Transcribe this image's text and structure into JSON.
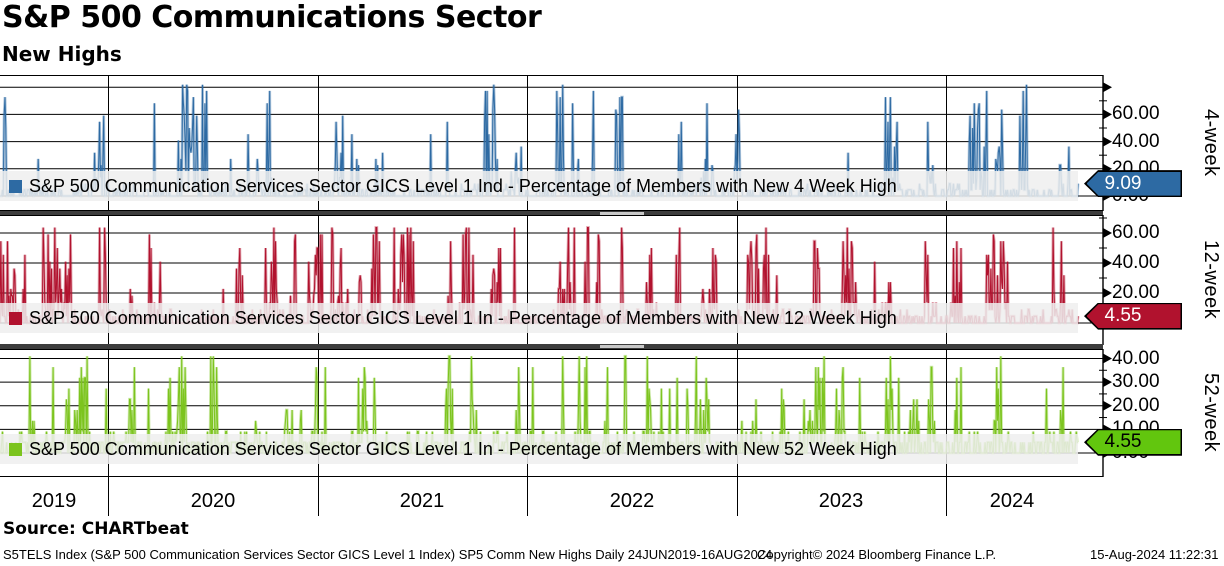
{
  "header": {
    "title": "S&P 500 Communications Sector",
    "subtitle": "New Highs"
  },
  "source_label": "Source: CHARTbeat",
  "footer": {
    "ticker_line": "S5TELS Index (S&P 500 Communication Services Sector GICS Level 1 Index) SP5 Comm New Highs  Daily 24JUN2019-16AUG2024",
    "copyright": "Copyright© 2024 Bloomberg Finance L.P.",
    "timestamp": "15-Aug-2024 11:22:31"
  },
  "xaxis": {
    "years": [
      "2019",
      "2020",
      "2021",
      "2022",
      "2023",
      "2024"
    ]
  },
  "chart_data": {
    "type": "line",
    "title": "S&P 500 Communications Sector - New Highs",
    "frequency": "Daily",
    "x_range": [
      "24JUN2019",
      "16AUG2024"
    ],
    "value_unit": "percent of members",
    "quantum_pct": 4.5455,
    "grid": true,
    "legend_position": "inside-bottom",
    "panels": [
      {
        "id": "4-week",
        "axis_label": "4-week",
        "legend": "S&P 500 Communication Services Sector GICS Level 1 Ind - Percentage of Members with New 4 Week High",
        "last_value": "9.09",
        "last_value_num": 9.09,
        "color": "#2D6AA3",
        "badge_bg": "#2D6AA3",
        "badge_text_color": "#FFFFFF",
        "ylim": [
          0,
          89
        ],
        "gridline_values": [
          0,
          20,
          40,
          60,
          80
        ],
        "minor_ticks": [
          10,
          30,
          50,
          70
        ],
        "yticks": [
          {
            "v": 60,
            "label": "60.00"
          },
          {
            "v": 40,
            "label": "40.00"
          },
          {
            "v": 20,
            "label": "20.00"
          },
          {
            "v": 0,
            "label": "0.00"
          }
        ],
        "gen": {
          "seed": 7391,
          "n": 1300,
          "max_q": 18,
          "p_enter": 0.06,
          "p_exit": 0.14,
          "p_zero_quiet": 0.62,
          "p_zero_active": 0.22,
          "p_big": 0.05
        }
      },
      {
        "id": "12-week",
        "axis_label": "12-week",
        "legend": "S&P 500 Communication Services Sector GICS Level 1 In - Percentage of Members with New 12 Week High",
        "last_value": "4.55",
        "last_value_num": 4.55,
        "color": "#B1122E",
        "badge_bg": "#B1122E",
        "badge_text_color": "#FFFFFF",
        "ylim": [
          0,
          72
        ],
        "gridline_values": [
          0,
          20,
          40,
          60
        ],
        "minor_ticks": [
          10,
          30,
          50,
          70
        ],
        "yticks": [
          {
            "v": 60,
            "label": "60.00"
          },
          {
            "v": 40,
            "label": "40.00"
          },
          {
            "v": 20,
            "label": "20.00"
          },
          {
            "v": 0,
            "label": "0.00"
          }
        ],
        "gen": {
          "seed": 9130,
          "n": 1300,
          "max_q": 14,
          "p_enter": 0.055,
          "p_exit": 0.15,
          "p_zero_quiet": 0.66,
          "p_zero_active": 0.24,
          "p_big": 0.04
        }
      },
      {
        "id": "52-week",
        "axis_label": "52-week",
        "legend": "S&P 500 Communication Services Sector GICS Level 1 In - Percentage of Members with New 52 Week High",
        "last_value": "4.55",
        "last_value_num": 4.55,
        "color": "#7CC41E",
        "badge_bg": "#62C60E",
        "badge_text_color": "#000000",
        "ylim": [
          0,
          44
        ],
        "gridline_values": [
          0,
          10,
          20,
          30,
          40
        ],
        "minor_ticks": [
          5,
          15,
          25,
          35
        ],
        "yticks": [
          {
            "v": 40,
            "label": "40.00"
          },
          {
            "v": 30,
            "label": "30.00"
          },
          {
            "v": 20,
            "label": "20.00"
          },
          {
            "v": 10,
            "label": "10.00"
          },
          {
            "v": 0,
            "label": "0.00"
          }
        ],
        "gen": {
          "seed": 5124,
          "n": 1300,
          "max_q": 9,
          "p_enter": 0.06,
          "p_exit": 0.13,
          "p_zero_quiet": 0.55,
          "p_zero_active": 0.26,
          "p_big": 0.04
        }
      }
    ]
  }
}
